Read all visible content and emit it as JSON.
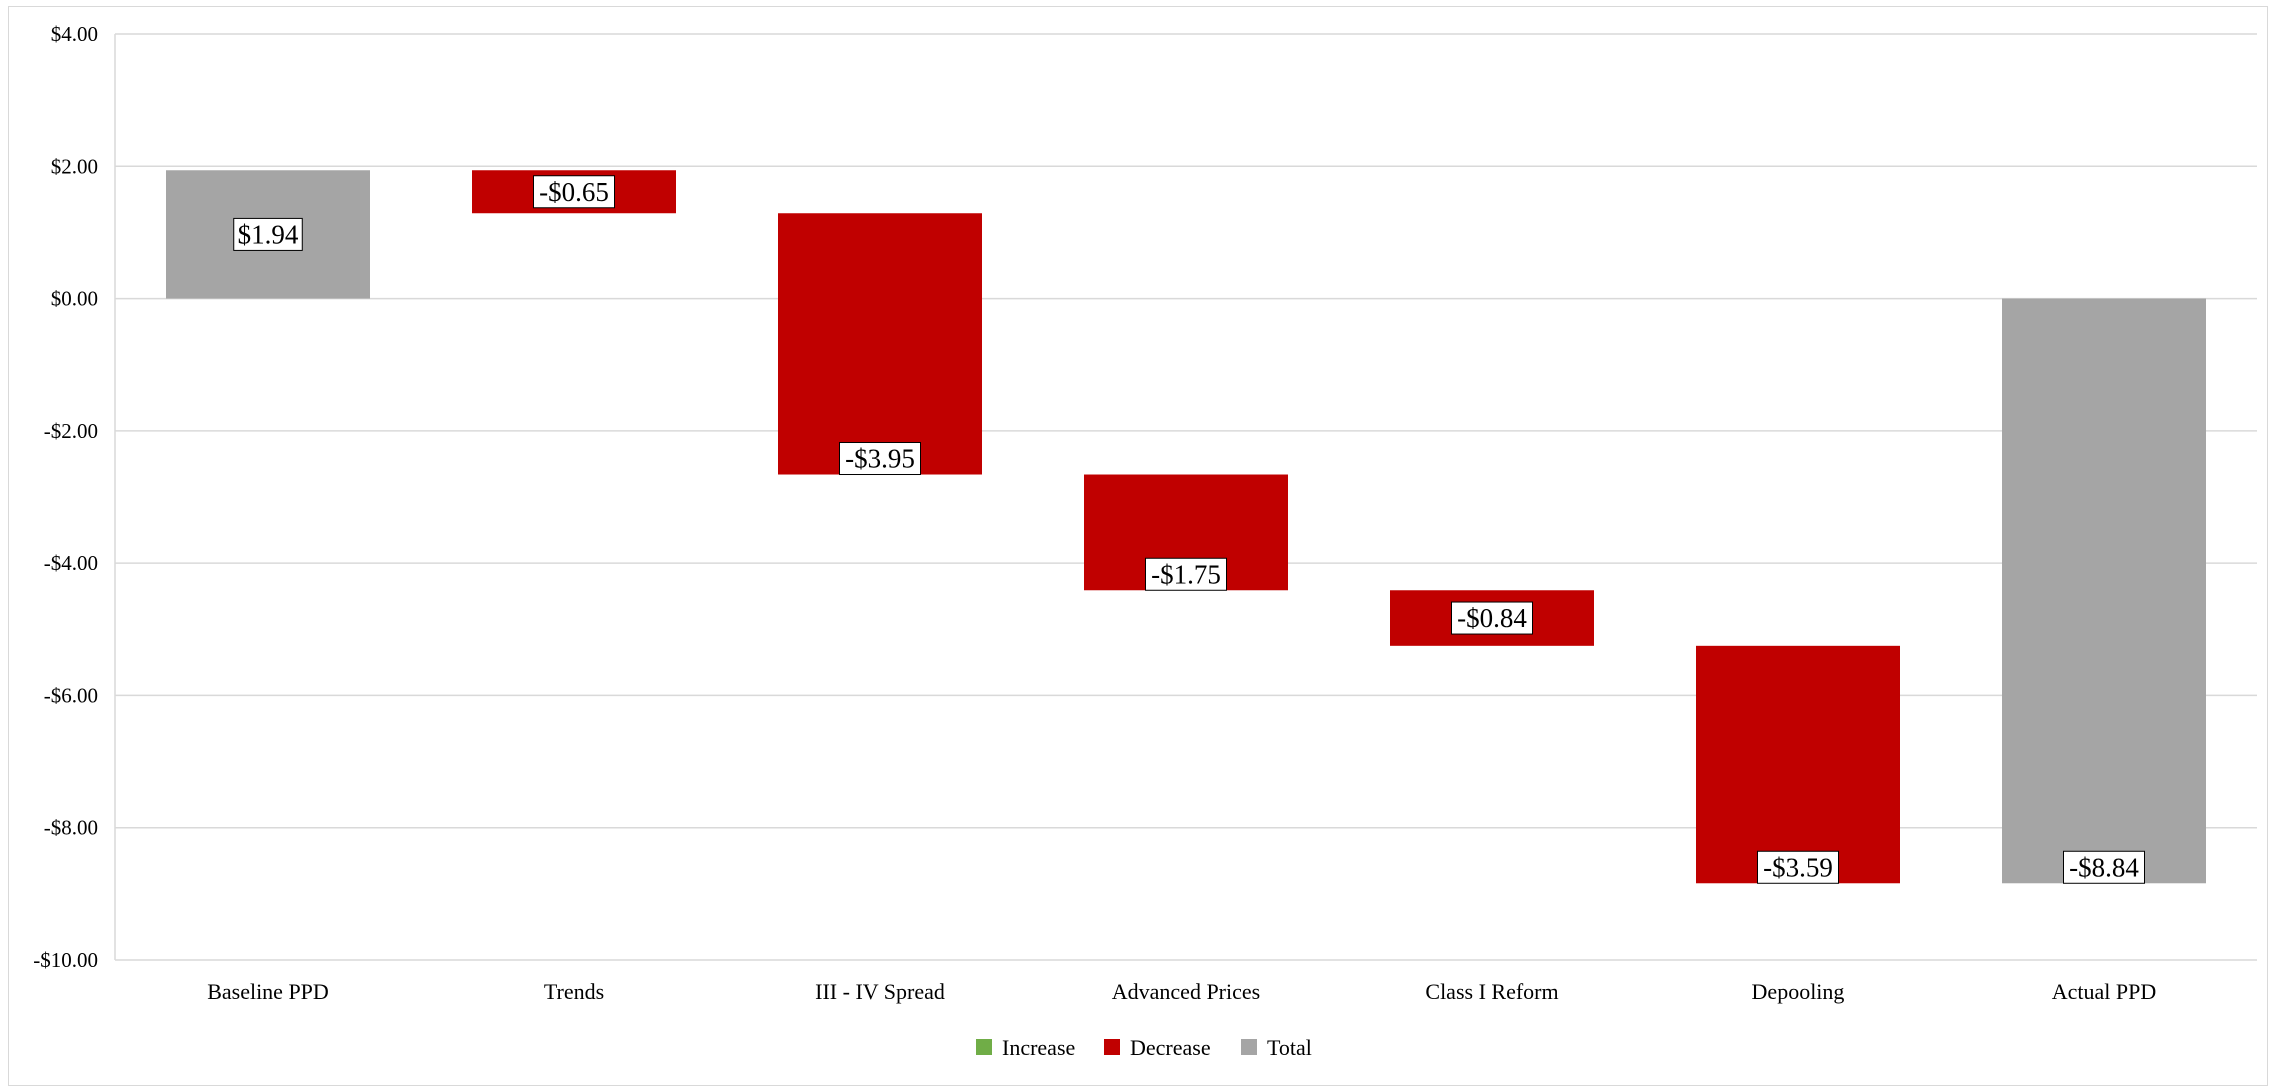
{
  "chart_data": {
    "type": "waterfall",
    "title": "",
    "xlabel": "",
    "ylabel": "",
    "ylim": [
      -10,
      4
    ],
    "y_ticks": [
      4,
      2,
      0,
      -2,
      -4,
      -6,
      -8,
      -10
    ],
    "y_tick_labels": [
      "$4.00",
      "$2.00",
      "$0.00",
      "-$2.00",
      "-$4.00",
      "-$6.00",
      "-$8.00",
      "-$10.00"
    ],
    "grid": true,
    "legend_position": "bottom",
    "categories": [
      "Baseline PPD",
      "Trends",
      "III - IV Spread",
      "Advanced Prices",
      "Class I Reform",
      "Depooling",
      "Actual PPD"
    ],
    "values": [
      1.94,
      -0.65,
      -3.95,
      -1.75,
      -0.84,
      -3.59,
      -8.84
    ],
    "kinds": [
      "total",
      "decrease",
      "decrease",
      "decrease",
      "decrease",
      "decrease",
      "total"
    ],
    "data_labels": [
      "$1.94",
      "-$0.65",
      "-$3.95",
      "-$1.75",
      "-$0.84",
      "-$3.59",
      "-$8.84"
    ],
    "legend": [
      {
        "label": "Increase",
        "color": "#70ad47"
      },
      {
        "label": "Decrease",
        "color": "#c00000"
      },
      {
        "label": "Total",
        "color": "#a5a5a5"
      }
    ],
    "colors": {
      "increase": "#70ad47",
      "decrease": "#c00000",
      "total": "#a5a5a5"
    }
  }
}
